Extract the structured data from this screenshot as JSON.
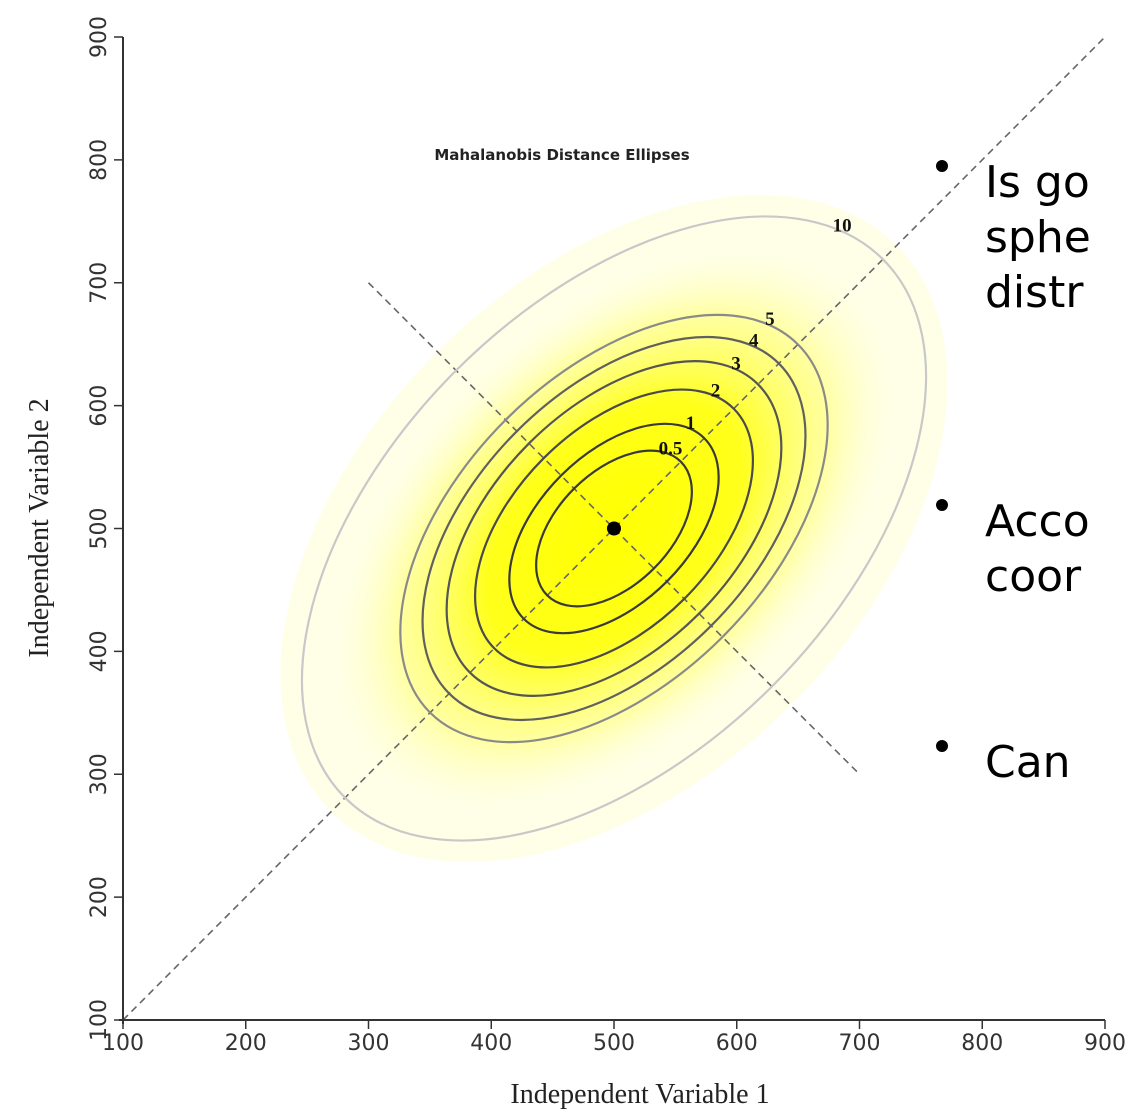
{
  "chart_data": {
    "type": "contour",
    "title": "Mahalanobis Distance Ellipses",
    "x_label": "Independent Variable 1",
    "y_label": "Independent Variable 2",
    "xlim": [
      100,
      900
    ],
    "ylim": [
      100,
      900
    ],
    "xticks": [
      100,
      200,
      300,
      400,
      500,
      600,
      700,
      800,
      900
    ],
    "yticks": [
      100,
      200,
      300,
      400,
      500,
      600,
      700,
      800,
      900
    ],
    "angle": 45,
    "center": {
      "x": 500,
      "y": 500
    },
    "contours": [
      {
        "level": 0.5,
        "semi_major": 77,
        "semi_minor": 46,
        "color": "#3a3a3a"
      },
      {
        "level": 1,
        "semi_major": 104,
        "semi_minor": 61,
        "color": "#3a3a3a"
      },
      {
        "level": 2,
        "semi_major": 138,
        "semi_minor": 81,
        "color": "#4a4a4a"
      },
      {
        "level": 3,
        "semi_major": 166,
        "semi_minor": 98,
        "color": "#555555"
      },
      {
        "level": 4,
        "semi_major": 190,
        "semi_minor": 112,
        "color": "#606060"
      },
      {
        "level": 5,
        "semi_major": 212,
        "semi_minor": 125,
        "color": "#8a8a8a"
      },
      {
        "level": 10,
        "semi_major": 310,
        "semi_minor": 182,
        "color": "#c8c8c8"
      }
    ],
    "lines": [
      {
        "x": [
          100,
          900
        ],
        "y": [
          100,
          900
        ]
      },
      {
        "x": [
          300,
          700
        ],
        "y": [
          700,
          300
        ]
      }
    ]
  },
  "bullets": [
    {
      "lines": [
        "Is go",
        "sphe",
        "distr"
      ]
    },
    {
      "lines": [
        "Acco",
        "coor"
      ]
    },
    {
      "lines": [
        "Can"
      ]
    }
  ]
}
